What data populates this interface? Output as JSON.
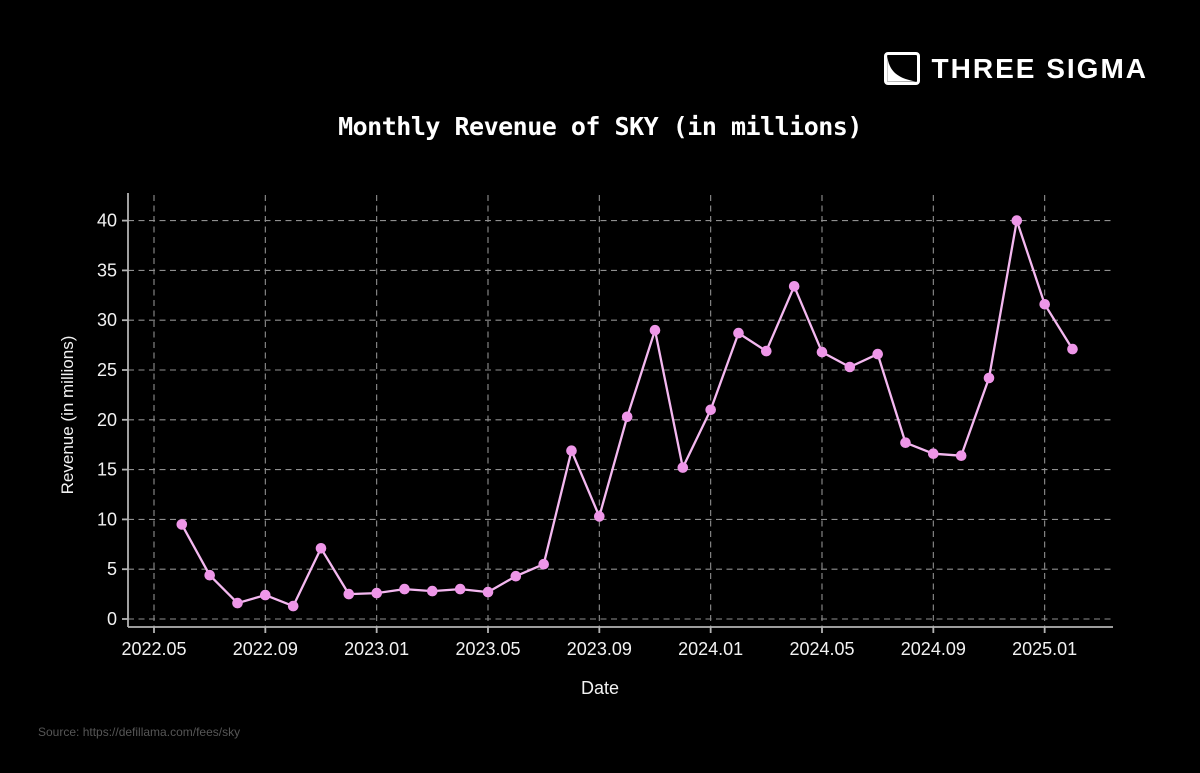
{
  "page": {
    "background": "#000000"
  },
  "logo": {
    "text": "THREE SIGMA"
  },
  "title": "Monthly Revenue of SKY (in millions)",
  "source": "Source: https://defillama.com/fees/sky",
  "chart_data": {
    "type": "line",
    "title": "Monthly Revenue of SKY (in millions)",
    "xlabel": "Date",
    "ylabel": "Revenue (in millions)",
    "x": [
      "2022.06",
      "2022.07",
      "2022.08",
      "2022.09",
      "2022.10",
      "2022.11",
      "2022.12",
      "2023.01",
      "2023.02",
      "2023.03",
      "2023.04",
      "2023.05",
      "2023.06",
      "2023.07",
      "2023.08",
      "2023.09",
      "2023.10",
      "2023.11",
      "2023.12",
      "2024.01",
      "2024.02",
      "2024.03",
      "2024.04",
      "2024.05",
      "2024.06",
      "2024.07",
      "2024.08",
      "2024.09",
      "2024.10",
      "2024.11",
      "2024.12",
      "2025.01",
      "2025.02"
    ],
    "values": [
      9.5,
      4.4,
      1.6,
      2.4,
      1.3,
      7.1,
      2.5,
      2.6,
      3.0,
      2.8,
      3.0,
      2.7,
      4.3,
      5.5,
      16.9,
      10.3,
      20.3,
      29.0,
      15.2,
      21.0,
      28.7,
      26.9,
      33.4,
      26.8,
      25.3,
      26.6,
      17.7,
      16.6,
      16.4,
      24.2,
      40.0,
      31.6,
      27.1
    ],
    "x_tick_labels": [
      "2022.05",
      "2022.09",
      "2023.01",
      "2023.05",
      "2023.09",
      "2024.01",
      "2024.05",
      "2024.09",
      "2025.01"
    ],
    "y_ticks": [
      0,
      5,
      10,
      15,
      20,
      25,
      30,
      35,
      40
    ],
    "ylim": [
      -0.8,
      42.8
    ],
    "grid": "dashed",
    "legend": "none",
    "line_color": "#f4b8f0",
    "marker_color": "#ee96e8",
    "grid_color": "#8f8f8f",
    "axis_color": "#b3b3b3",
    "tick_label_color": "#f2f2f2",
    "background_color": "#000000"
  }
}
